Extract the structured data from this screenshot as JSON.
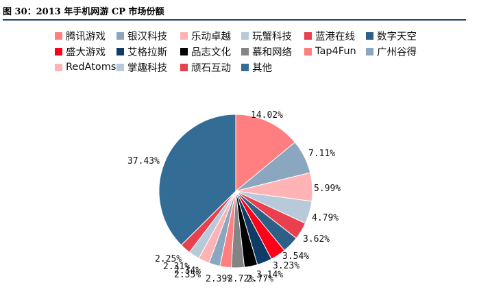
{
  "figure_title": "图 30：2013 年手机网游 CP 市场份额",
  "chart_data": {
    "type": "pie",
    "title": "",
    "legend_position": "top",
    "slices": [
      {
        "name": "腾讯游戏",
        "value": 14.02,
        "label": "14.02%",
        "color": "#ff7f80"
      },
      {
        "name": "银汉科技",
        "value": 7.11,
        "label": "7.11%",
        "color": "#8ba7c0"
      },
      {
        "name": "乐动卓越",
        "value": 5.99,
        "label": "5.99%",
        "color": "#ffb3b5"
      },
      {
        "name": "玩蟹科技",
        "value": 4.79,
        "label": "4.79%",
        "color": "#b8c9da"
      },
      {
        "name": "蓝港在线",
        "value": 3.62,
        "label": "3.62%",
        "color": "#e8404e"
      },
      {
        "name": "数字天空",
        "value": 3.54,
        "label": "3.54%",
        "color": "#2e5f86"
      },
      {
        "name": "盛大游戏",
        "value": 3.23,
        "label": "3.23%",
        "color": "#ff0018"
      },
      {
        "name": "艾格拉斯",
        "value": 3.14,
        "label": "3.14%",
        "color": "#0f3c66"
      },
      {
        "name": "品志文化",
        "value": 2.77,
        "label": "2.77%",
        "color": "#000000"
      },
      {
        "name": "慕和网络",
        "value": 2.72,
        "label": "2.72%",
        "color": "#848484"
      },
      {
        "name": "Tap4Fun",
        "value": 2.39,
        "label": "2.39%",
        "color": "#ff7f80"
      },
      {
        "name": "广州谷得",
        "value": 2.35,
        "label": "2.35%",
        "color": "#8ba7c0"
      },
      {
        "name": "RedAtoms",
        "value": 2.34,
        "label": "2.34%",
        "color": "#ffb3b5"
      },
      {
        "name": "掌趣科技",
        "value": 2.31,
        "label": "2.31%",
        "color": "#b8c9da"
      },
      {
        "name": "顽石互动",
        "value": 2.25,
        "label": "2.25%",
        "color": "#e8404e"
      },
      {
        "name": "其他",
        "value": 37.43,
        "label": "37.43%",
        "color": "#336d96"
      }
    ]
  }
}
